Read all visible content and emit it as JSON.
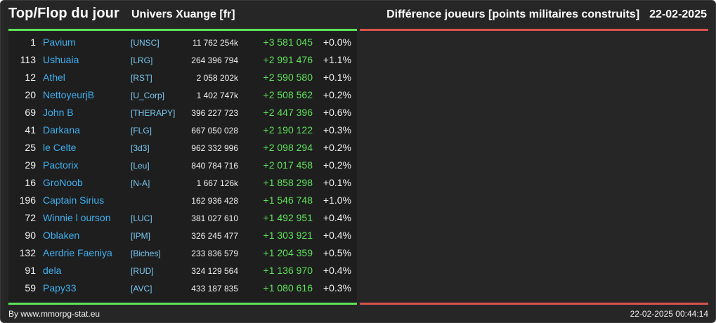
{
  "header": {
    "title": "Top/Flop du jour",
    "universe": "Univers Xuange [fr]",
    "metric": "Différence joueurs [points militaires construits]",
    "date": "22-02-2025"
  },
  "colors": {
    "background": "#262626",
    "panel": "#1e1e1e",
    "name": "#3fb0f0",
    "alliance": "#79c7f0",
    "gain": "#5ee35a",
    "top_bar": "#5ee35a",
    "flop_bar": "#d9534c"
  },
  "top": [
    {
      "rank": "1",
      "name": "Pavium",
      "alliance": "[UNSC]",
      "points": "11 762 254k",
      "diff": "+3 581 045",
      "pct": "+0.0%"
    },
    {
      "rank": "113",
      "name": "Ushuaia",
      "alliance": "[LRG]",
      "points": "264 396 794",
      "diff": "+2 991 476",
      "pct": "+1.1%"
    },
    {
      "rank": "12",
      "name": "Athel",
      "alliance": "[RST]",
      "points": "2 058 202k",
      "diff": "+2 590 580",
      "pct": "+0.1%"
    },
    {
      "rank": "20",
      "name": "NettoyeurjB",
      "alliance": "[U_Corp]",
      "points": "1 402 747k",
      "diff": "+2 508 562",
      "pct": "+0.2%"
    },
    {
      "rank": "69",
      "name": "John B",
      "alliance": "[THERAPY]",
      "points": "396 227 723",
      "diff": "+2 447 396",
      "pct": "+0.6%"
    },
    {
      "rank": "41",
      "name": "Darkana",
      "alliance": "[FLG]",
      "points": "667 050 028",
      "diff": "+2 190 122",
      "pct": "+0.3%"
    },
    {
      "rank": "25",
      "name": "le Celte",
      "alliance": "[3d3]",
      "points": "962 332 996",
      "diff": "+2 098 294",
      "pct": "+0.2%"
    },
    {
      "rank": "29",
      "name": "Pactorix",
      "alliance": "[Leu]",
      "points": "840 784 716",
      "diff": "+2 017 458",
      "pct": "+0.2%"
    },
    {
      "rank": "16",
      "name": "GroNoob",
      "alliance": "[N-A]",
      "points": "1 667 126k",
      "diff": "+1 858 298",
      "pct": "+0.1%"
    },
    {
      "rank": "196",
      "name": "Captain Sirius",
      "alliance": "",
      "points": "162 936 428",
      "diff": "+1 546 748",
      "pct": "+1.0%"
    },
    {
      "rank": "72",
      "name": "Winnie l ourson",
      "alliance": "[LUC]",
      "points": "381 027 610",
      "diff": "+1 492 951",
      "pct": "+0.4%"
    },
    {
      "rank": "90",
      "name": "Oblaken",
      "alliance": "[IPM]",
      "points": "326 245 477",
      "diff": "+1 303 921",
      "pct": "+0.4%"
    },
    {
      "rank": "132",
      "name": "Aerdrie Faeniya",
      "alliance": "[Biches]",
      "points": "233 836 579",
      "diff": "+1 204 359",
      "pct": "+0.5%"
    },
    {
      "rank": "91",
      "name": "dela",
      "alliance": "[RUD]",
      "points": "324 129 564",
      "diff": "+1 136 970",
      "pct": "+0.4%"
    },
    {
      "rank": "59",
      "name": "Papy33",
      "alliance": "[AVC]",
      "points": "433 187 835",
      "diff": "+1 080 616",
      "pct": "+0.3%"
    }
  ],
  "flop": [],
  "footer": {
    "credit": "By www.mmorpg-stat.eu",
    "timestamp": "22-02-2025 00:44:14"
  }
}
